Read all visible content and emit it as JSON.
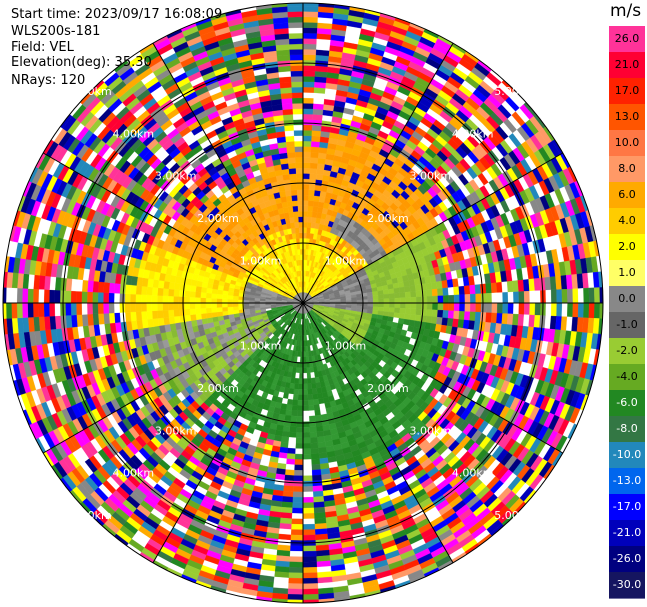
{
  "header": {
    "start_time": "Start time: 2023/09/17 16:08:09",
    "instrument": "WLS200s-181",
    "field": "Field: VEL",
    "elevation": "Elevation(deg): 35.30",
    "nrays": "NRays: 120"
  },
  "chart_data": {
    "type": "heatmap",
    "projection": "polar PPI",
    "field": "VEL",
    "units": "m/s",
    "nrays": 120,
    "range_rings_km": [
      1.0,
      2.0,
      3.0,
      4.0,
      5.0
    ],
    "ring_labels": [
      "1.00km",
      "2.00km",
      "3.00km",
      "4.00km",
      "5.00km"
    ],
    "spokes_deg": [
      0,
      30,
      60,
      90,
      120,
      150,
      180,
      210,
      240,
      270,
      300,
      330
    ],
    "colorbar": {
      "title": "m/s",
      "ticks": [
        "26.0",
        "21.0",
        "17.0",
        "13.0",
        "10.0",
        "8.0",
        "6.0",
        "4.0",
        "2.0",
        "1.0",
        "0.0",
        "-1.0",
        "-2.0",
        "-4.0",
        "-6.0",
        "-8.0",
        "-10.0",
        "-13.0",
        "-17.0",
        "-21.0",
        "-26.0",
        "-30.0"
      ],
      "colors": [
        "#ff3399",
        "#ff0033",
        "#ff2200",
        "#ff5500",
        "#ff7744",
        "#ff9966",
        "#ffaa00",
        "#ffcc00",
        "#ffff00",
        "#ffff66",
        "#888888",
        "#666666",
        "#99cc33",
        "#66aa22",
        "#228822",
        "#337744",
        "#2288bb",
        "#0066ee",
        "#0000ff",
        "#0000bb",
        "#000080",
        "#151560"
      ]
    }
  }
}
